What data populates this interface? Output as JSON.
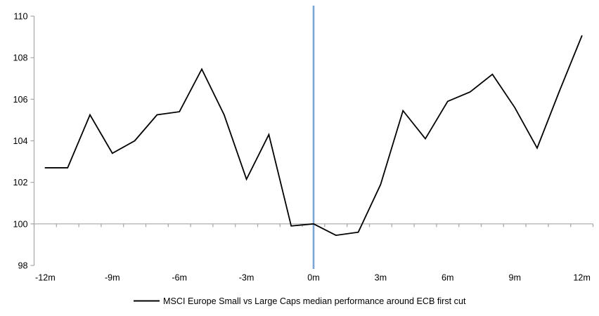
{
  "chart_data": {
    "type": "line",
    "title": "",
    "xlabel": "",
    "ylabel": "",
    "x": [
      -12,
      -11,
      -10,
      -9,
      -8,
      -7,
      -6,
      -5,
      -4,
      -3,
      -2,
      -1,
      0,
      1,
      2,
      3,
      4,
      5,
      6,
      7,
      8,
      9,
      10,
      11,
      12
    ],
    "series": [
      {
        "name": "MSCI Europe Small vs Large Caps median performance around ECB first cut",
        "color": "#000000",
        "values": [
          102.7,
          102.7,
          105.25,
          103.4,
          104.0,
          105.25,
          105.4,
          107.45,
          105.25,
          102.15,
          104.3,
          99.9,
          100.0,
          99.45,
          99.6,
          101.9,
          105.45,
          104.1,
          105.9,
          106.35,
          107.2,
          105.6,
          103.65,
          106.4,
          109.05
        ]
      }
    ],
    "x_tick_positions": [
      -12,
      -9,
      -6,
      -3,
      0,
      3,
      6,
      9,
      12
    ],
    "x_tick_labels": [
      "-12m",
      "-9m",
      "-6m",
      "-3m",
      "0m",
      "3m",
      "6m",
      "9m",
      "12m"
    ],
    "y_ticks": [
      98,
      100,
      102,
      104,
      106,
      108,
      110
    ],
    "ylim": [
      98,
      110
    ],
    "xlim": [
      -12.5,
      12.5
    ],
    "baseline_y": 100,
    "event_line_x": 0,
    "grid": "off",
    "legend_position": "bottom-center",
    "colors": {
      "series": "#000000",
      "event_line": "#7DA5D4",
      "axis": "#A6A6A6",
      "text": "#000000"
    }
  }
}
